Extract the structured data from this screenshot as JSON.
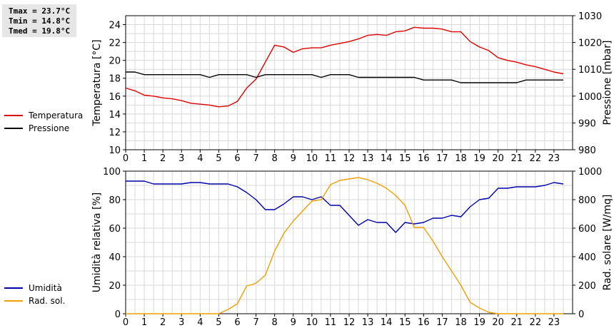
{
  "stats": {
    "tmax": "Tmax = 23.7°C",
    "tmin": "Tmin = 14.8°C",
    "tmed": "Tmed = 19.8°C"
  },
  "legend_top": [
    {
      "label": "Temperatura",
      "color": "#dd0000"
    },
    {
      "label": "Pressione",
      "color": "#000000"
    }
  ],
  "legend_bottom": [
    {
      "label": "Umidità",
      "color": "#0000aa"
    },
    {
      "label": "Rad. sol.",
      "color": "#f0a000"
    }
  ],
  "chart_data": [
    {
      "type": "line",
      "xlim": [
        0,
        24
      ],
      "xticks": [
        "0",
        "1",
        "2",
        "3",
        "4",
        "5",
        "6",
        "7",
        "8",
        "9",
        "10",
        "11",
        "12",
        "13",
        "14",
        "15",
        "16",
        "17",
        "18",
        "19",
        "20",
        "21",
        "22",
        "23"
      ],
      "ylabel": "Temperatura [°C]",
      "ylim": [
        10,
        25
      ],
      "yticks": [
        10,
        12,
        14,
        16,
        18,
        20,
        22,
        24
      ],
      "y2label": "Pressione [mbar]",
      "y2lim": [
        980,
        1030
      ],
      "y2ticks": [
        980,
        990,
        1000,
        1010,
        1020,
        1030
      ],
      "grid": true,
      "series": [
        {
          "name": "Temperatura",
          "axis": "left",
          "color": "#dd0000",
          "x": [
            0,
            0.5,
            1,
            1.5,
            2,
            2.5,
            3,
            3.5,
            4,
            4.5,
            5,
            5.5,
            6,
            6.5,
            7,
            7.5,
            8,
            8.5,
            9,
            9.5,
            10,
            10.5,
            11,
            11.5,
            12,
            12.5,
            13,
            13.5,
            14,
            14.5,
            15,
            15.5,
            16,
            16.5,
            17,
            17.5,
            18,
            18.5,
            19,
            19.5,
            20,
            20.5,
            21,
            21.5,
            22,
            22.5,
            23,
            23.5
          ],
          "y": [
            16.9,
            16.6,
            16.1,
            16.0,
            15.8,
            15.7,
            15.5,
            15.2,
            15.1,
            15.0,
            14.8,
            14.9,
            15.4,
            16.9,
            17.9,
            19.8,
            21.7,
            21.5,
            20.9,
            21.3,
            21.4,
            21.4,
            21.7,
            21.9,
            22.1,
            22.4,
            22.8,
            22.9,
            22.8,
            23.2,
            23.3,
            23.7,
            23.6,
            23.6,
            23.5,
            23.2,
            23.2,
            22.1,
            21.5,
            21.1,
            20.3,
            20.0,
            19.8,
            19.5,
            19.3,
            19.0,
            18.7,
            18.5
          ]
        },
        {
          "name": "Pressione",
          "axis": "right",
          "color": "#000000",
          "x": [
            0,
            0.5,
            1,
            1.5,
            2,
            2.5,
            3,
            3.5,
            4,
            4.5,
            5,
            5.5,
            6,
            6.5,
            7,
            7.5,
            8,
            8.5,
            9,
            9.5,
            10,
            10.5,
            11,
            11.5,
            12,
            12.5,
            13,
            13.5,
            14,
            14.5,
            15,
            15.5,
            16,
            16.5,
            17,
            17.5,
            18,
            18.5,
            19,
            19.5,
            20,
            20.5,
            21,
            21.5,
            22,
            22.5,
            23,
            23.5
          ],
          "y": [
            1009,
            1009,
            1008,
            1008,
            1008,
            1008,
            1008,
            1008,
            1008,
            1007,
            1008,
            1008,
            1008,
            1008,
            1007,
            1008,
            1008,
            1008,
            1008,
            1008,
            1008,
            1007,
            1008,
            1008,
            1008,
            1007,
            1007,
            1007,
            1007,
            1007,
            1007,
            1007,
            1006,
            1006,
            1006,
            1006,
            1005,
            1005,
            1005,
            1005,
            1005,
            1005,
            1005,
            1006,
            1006,
            1006,
            1006,
            1006
          ]
        }
      ]
    },
    {
      "type": "line",
      "xlim": [
        0,
        24
      ],
      "xticks": [
        "0",
        "1",
        "2",
        "3",
        "4",
        "5",
        "6",
        "7",
        "8",
        "9",
        "10",
        "11",
        "12",
        "13",
        "14",
        "15",
        "16",
        "17",
        "18",
        "19",
        "20",
        "21",
        "22",
        "23"
      ],
      "ylabel": "Umidità relativa [%]",
      "ylim": [
        0,
        100
      ],
      "yticks": [
        0,
        20,
        40,
        60,
        80,
        100
      ],
      "y2label": "Rad. solare [W/mq]",
      "y2lim": [
        0,
        1000
      ],
      "y2ticks": [
        0,
        200,
        400,
        600,
        800,
        1000
      ],
      "grid": true,
      "series": [
        {
          "name": "Umidità",
          "axis": "left",
          "color": "#0000aa",
          "x": [
            0,
            0.5,
            1,
            1.5,
            2,
            2.5,
            3,
            3.5,
            4,
            4.5,
            5,
            5.5,
            6,
            6.5,
            7,
            7.5,
            8,
            8.5,
            9,
            9.5,
            10,
            10.5,
            11,
            11.5,
            12,
            12.5,
            13,
            13.5,
            14,
            14.5,
            15,
            15.5,
            16,
            16.5,
            17,
            17.5,
            18,
            18.5,
            19,
            19.5,
            20,
            20.5,
            21,
            21.5,
            22,
            22.5,
            23,
            23.5
          ],
          "y": [
            93,
            93,
            93,
            91,
            91,
            91,
            91,
            92,
            92,
            91,
            91,
            91,
            89,
            85,
            80,
            73,
            73,
            77,
            82,
            82,
            80,
            82,
            76,
            76,
            69,
            62,
            66,
            64,
            64,
            57,
            64,
            63,
            64,
            67,
            67,
            69,
            68,
            75,
            80,
            81,
            88,
            88,
            89,
            89,
            89,
            90,
            92,
            91
          ]
        },
        {
          "name": "Rad. sol.",
          "axis": "right",
          "color": "#f0a000",
          "x": [
            0,
            0.5,
            1,
            1.5,
            2,
            2.5,
            3,
            3.5,
            4,
            4.5,
            5,
            5.5,
            6,
            6.5,
            6.8,
            7,
            7.5,
            8,
            8.5,
            9,
            9.5,
            10,
            10.5,
            11,
            11.5,
            12,
            12.5,
            13,
            13.5,
            14,
            14.5,
            15,
            15.5,
            15.8,
            16,
            16.5,
            17,
            17.5,
            18,
            18.5,
            19,
            19.5,
            20,
            20.5,
            21,
            21.5,
            22,
            22.5,
            23,
            23.5
          ],
          "y": [
            0,
            0,
            0,
            0,
            0,
            0,
            0,
            0,
            0,
            0,
            0,
            30,
            70,
            195,
            205,
            215,
            270,
            440,
            565,
            650,
            720,
            790,
            800,
            905,
            935,
            945,
            955,
            940,
            915,
            880,
            830,
            760,
            605,
            605,
            605,
            510,
            400,
            300,
            200,
            80,
            40,
            10,
            0,
            0,
            0,
            0,
            0,
            0,
            0,
            0
          ]
        }
      ]
    }
  ]
}
